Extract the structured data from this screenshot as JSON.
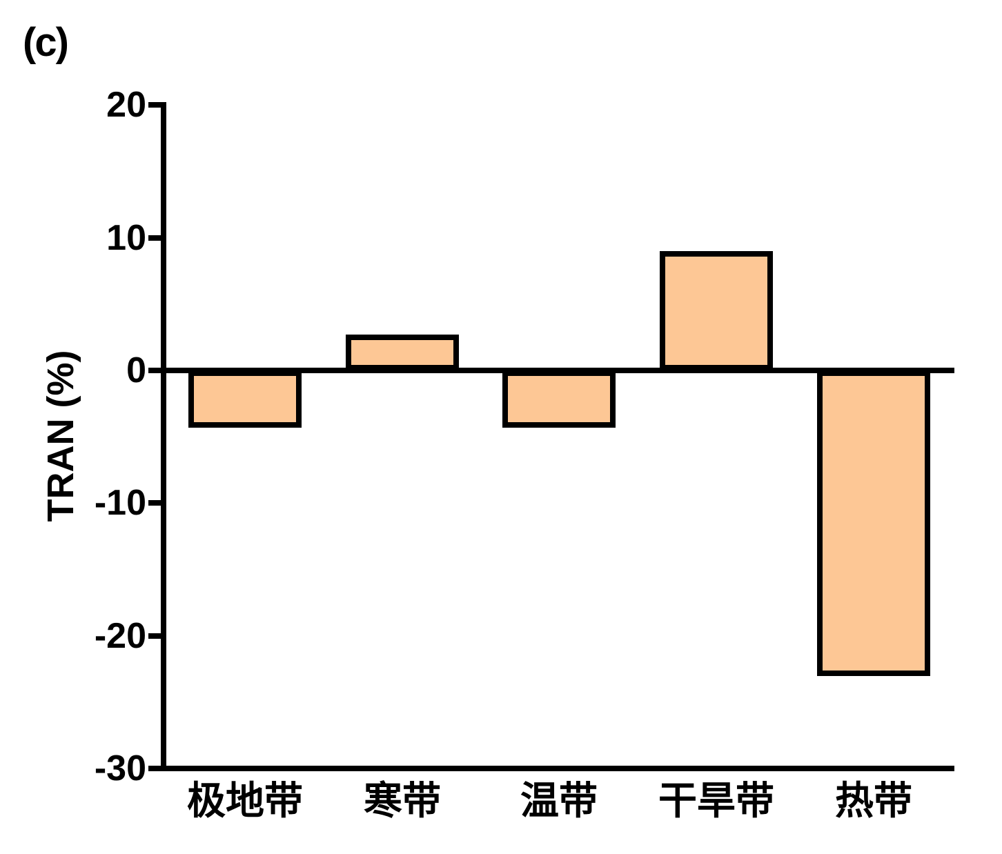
{
  "panel_label": "(c)",
  "chart_data": {
    "type": "bar",
    "title": "",
    "xlabel": "",
    "ylabel": "TRAN (%)",
    "categories": [
      "极地带",
      "寒带",
      "温带",
      "干旱带",
      "热带"
    ],
    "values": [
      -4.3,
      2.7,
      -4.3,
      9.0,
      -23.0
    ],
    "ylim": [
      -30,
      20
    ],
    "yticks": [
      20,
      10,
      0,
      -10,
      -20,
      -30
    ],
    "grid": false,
    "legend": null,
    "bar_fill_color": "#FDC795",
    "bar_border_color": "#000000",
    "axis_color": "#000000"
  }
}
